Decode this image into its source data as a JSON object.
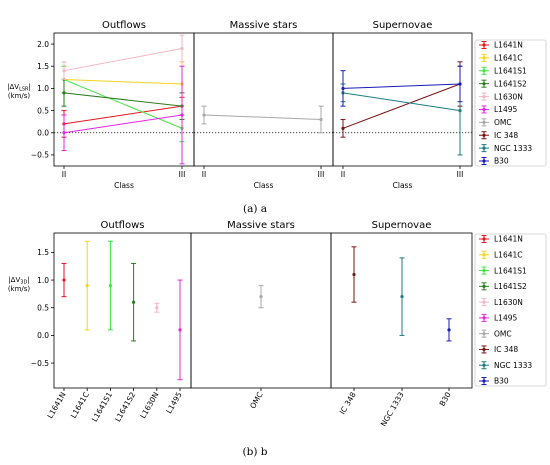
{
  "chart_data": [
    {
      "type": "line",
      "panel_titles": [
        "Outflows",
        "Massive stars",
        "Supernovae"
      ],
      "ylabel": [
        "|ΔV",
        "LSR",
        "|",
        "(km/s)"
      ],
      "xlabel": "Class",
      "x_categories": [
        "II",
        "III"
      ],
      "ylim": [
        -0.75,
        2.25
      ],
      "yticks": [
        -0.5,
        0.0,
        0.5,
        1.0,
        1.5,
        2.0
      ],
      "ytick_labels": [
        "−0.5",
        "0.0",
        "0.5",
        "1.0",
        "1.5",
        "2.0"
      ],
      "zero_line": "dotted",
      "panels": [
        {
          "series": [
            {
              "name": "L1641N",
              "values": [
                0.2,
                0.6
              ],
              "err": [
                [
                  0.3,
                  0.3
                ],
                [
                  0.2,
                  0.2
                ]
              ]
            },
            {
              "name": "L1641C",
              "values": [
                1.2,
                1.1
              ],
              "err": [
                [
                  0.3,
                  0.3
                ],
                [
                  0.5,
                  0.5
                ]
              ]
            },
            {
              "name": "L1641S1",
              "values": [
                1.2,
                0.1
              ],
              "err": [
                [
                  0.3,
                  0.3
                ],
                [
                  0.3,
                  0.3
                ]
              ]
            },
            {
              "name": "L1641S2",
              "values": [
                0.9,
                0.6
              ],
              "err": [
                [
                  0.3,
                  0.3
                ],
                [
                  0.3,
                  0.3
                ]
              ]
            },
            {
              "name": "L1630N",
              "values": [
                1.4,
                1.9
              ],
              "err": [
                [
                  0.2,
                  0.2
                ],
                [
                  0.3,
                  0.3
                ]
              ]
            },
            {
              "name": "L1495",
              "values": [
                0.0,
                0.4
              ],
              "err": [
                [
                  0.4,
                  0.4
                ],
                [
                  1.1,
                  1.1
                ]
              ]
            }
          ]
        },
        {
          "series": [
            {
              "name": "OMC",
              "values": [
                0.4,
                0.3
              ],
              "err": [
                [
                  0.2,
                  0.2
                ],
                [
                  0.3,
                  0.3
                ]
              ]
            }
          ]
        },
        {
          "series": [
            {
              "name": "IC 348",
              "values": [
                0.1,
                1.1
              ],
              "err": [
                [
                  0.2,
                  0.2
                ],
                [
                  0.5,
                  0.5
                ]
              ]
            },
            {
              "name": "NGC 1333",
              "values": [
                0.9,
                0.5
              ],
              "err": [
                [
                  0.2,
                  0.2
                ],
                [
                  1.0,
                  1.0
                ]
              ]
            },
            {
              "name": "B30",
              "values": [
                1.0,
                1.1
              ],
              "err": [
                [
                  0.4,
                  0.4
                ],
                [
                  0.4,
                  0.4
                ]
              ]
            }
          ]
        }
      ]
    },
    {
      "type": "scatter",
      "panel_titles": [
        "Outflows",
        "Massive stars",
        "Supernovae"
      ],
      "ylabel": [
        "|ΔV",
        "3D",
        "|",
        "(km/s)"
      ],
      "ylim": [
        -0.95,
        1.85
      ],
      "yticks": [
        -0.5,
        0.0,
        0.5,
        1.0,
        1.5
      ],
      "ytick_labels": [
        "−0.5",
        "0.0",
        "0.5",
        "1.0",
        "1.5"
      ],
      "panels": [
        {
          "categories": [
            "L1641N",
            "L1641C",
            "L1641S1",
            "L1641S2",
            "L1630N",
            "L1495"
          ],
          "values": [
            1.0,
            0.9,
            0.9,
            0.6,
            0.5,
            0.1
          ],
          "err": [
            0.3,
            0.8,
            0.8,
            0.7,
            0.08,
            0.9
          ]
        },
        {
          "categories": [
            "OMC"
          ],
          "values": [
            0.7
          ],
          "err": [
            0.2
          ]
        },
        {
          "categories": [
            "IC 348",
            "NGC 1333",
            "B30"
          ],
          "values": [
            1.1,
            0.7,
            0.1
          ],
          "err": [
            0.5,
            0.7,
            0.2
          ]
        }
      ]
    }
  ],
  "legend": [
    {
      "name": "L1641N",
      "color": "#e8161f"
    },
    {
      "name": "L1641C",
      "color": "#f5d31c"
    },
    {
      "name": "L1641S1",
      "color": "#3ee33c"
    },
    {
      "name": "L1641S2",
      "color": "#2b7a1f"
    },
    {
      "name": "L1630N",
      "color": "#f4b6c4"
    },
    {
      "name": "L1495",
      "color": "#e624e3"
    },
    {
      "name": "OMC",
      "color": "#a8a8a8"
    },
    {
      "name": "IC 348",
      "color": "#7a1414"
    },
    {
      "name": "NGC 1333",
      "color": "#1c7d80"
    },
    {
      "name": "B30",
      "color": "#1a1ab8"
    }
  ],
  "captions": [
    "(a) a",
    "(b) b"
  ]
}
